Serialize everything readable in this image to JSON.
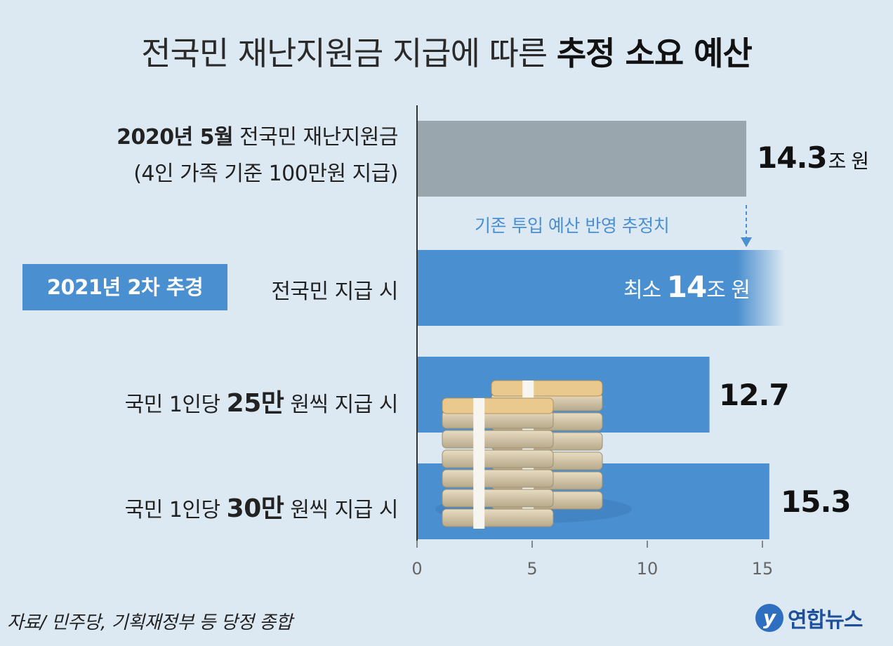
{
  "title": {
    "normal": "전국민 재난지원금 지급에 따른 ",
    "bold": "추정 소요 예산"
  },
  "rows": [
    {
      "bold_prefix": "2020년 5월",
      "text": " 전국민 재난지원금",
      "sub": "(4인 가족 기준 100만원 지급)"
    },
    {
      "badge": "2021년 2차 추경",
      "text": "전국민 지급 시"
    },
    {
      "text_prefix": "국민 1인당 ",
      "bold": "25만",
      "text_suffix": " 원씩 지급 시"
    },
    {
      "text_prefix": "국민 1인당 ",
      "bold": "30만",
      "text_suffix": " 원씩 지급 시"
    }
  ],
  "value_labels": [
    {
      "num": "14.3",
      "unit": "조 원"
    },
    {
      "prefix": "최소 ",
      "num": "14",
      "unit": "조 원"
    },
    {
      "num": "12.7"
    },
    {
      "num": "15.3"
    }
  ],
  "annotation": "기존 투입 예산 반영 추정치",
  "chart_data": {
    "type": "bar",
    "orientation": "horizontal",
    "title": "전국민 재난지원금 지급에 따른 추정 소요 예산",
    "categories": [
      "2020년 5월 전국민 재난지원금 (4인 가족 기준 100만원 지급)",
      "2021년 2차 추경 전국민 지급 시",
      "국민 1인당 25만 원씩 지급 시",
      "국민 1인당 30만 원씩 지급 시"
    ],
    "values": [
      14.3,
      14,
      12.7,
      15.3
    ],
    "colors": [
      "#9aa6ae",
      "#4a8fcf",
      "#4a8fcf",
      "#4a8fcf"
    ],
    "xlim": [
      0,
      15.8
    ],
    "xticks": [
      0,
      5,
      10,
      15
    ],
    "notes": {
      "second_bar": "minimum estimate (open-ended, fades out)"
    }
  },
  "source": "자료/ 민주당, 기획재정부 등 당정 종합",
  "logo": {
    "mark": "y",
    "text": "연합뉴스"
  },
  "colors": {
    "background": "#dde9f2",
    "accent": "#4a8fcf",
    "grey_bar": "#9aa6ae"
  }
}
